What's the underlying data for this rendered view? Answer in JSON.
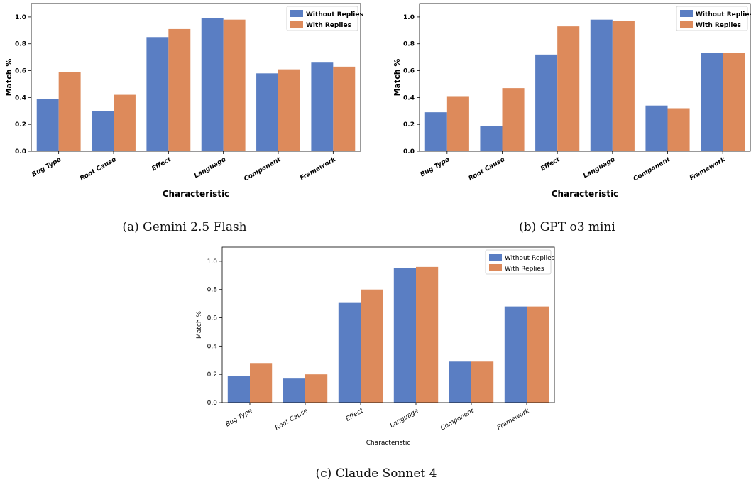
{
  "colors": {
    "without": "#5a7ec3",
    "with": "#dd8a5b"
  },
  "chart_data": [
    {
      "type": "bar",
      "caption": "(a) Gemini 2.5 Flash",
      "categories": [
        "Bug Type",
        "Root Cause",
        "Effect",
        "Language",
        "Component",
        "Framework"
      ],
      "series": [
        {
          "name": "Without Replies",
          "values": [
            0.39,
            0.3,
            0.85,
            0.99,
            0.58,
            0.66
          ]
        },
        {
          "name": "With Replies",
          "values": [
            0.59,
            0.42,
            0.91,
            0.98,
            0.61,
            0.63
          ]
        }
      ],
      "xlabel": "Characteristic",
      "ylabel": "Match %",
      "ylim": [
        0,
        1.1
      ],
      "yticks": [
        "0.0",
        "0.2",
        "0.4",
        "0.6",
        "0.8",
        "1.0"
      ],
      "legend_position": "top-right",
      "style": "bold"
    },
    {
      "type": "bar",
      "caption": "(b) GPT o3 mini",
      "categories": [
        "Bug Type",
        "Root Cause",
        "Effect",
        "Language",
        "Component",
        "Framework"
      ],
      "series": [
        {
          "name": "Without Replies",
          "values": [
            0.29,
            0.19,
            0.72,
            0.98,
            0.34,
            0.73
          ]
        },
        {
          "name": "With Replies",
          "values": [
            0.41,
            0.47,
            0.93,
            0.97,
            0.32,
            0.73
          ]
        }
      ],
      "xlabel": "Characteristic",
      "ylabel": "Match %",
      "ylim": [
        0,
        1.1
      ],
      "yticks": [
        "0.0",
        "0.2",
        "0.4",
        "0.6",
        "0.8",
        "1.0"
      ],
      "legend_position": "top-right",
      "style": "bold"
    },
    {
      "type": "bar",
      "caption": "(c) Claude Sonnet 4",
      "categories": [
        "Bug Type",
        "Root Cause",
        "Effect",
        "Language",
        "Component",
        "Framework"
      ],
      "series": [
        {
          "name": "Without Replies",
          "values": [
            0.19,
            0.17,
            0.71,
            0.95,
            0.29,
            0.68
          ]
        },
        {
          "name": "With Replies",
          "values": [
            0.28,
            0.2,
            0.8,
            0.96,
            0.29,
            0.68
          ]
        }
      ],
      "xlabel": "Characteristic",
      "ylabel": "Match %",
      "ylim": [
        0,
        1.1
      ],
      "yticks": [
        "0.0",
        "0.2",
        "0.4",
        "0.6",
        "0.8",
        "1.0"
      ],
      "legend_position": "top-right",
      "style": "normal"
    }
  ]
}
